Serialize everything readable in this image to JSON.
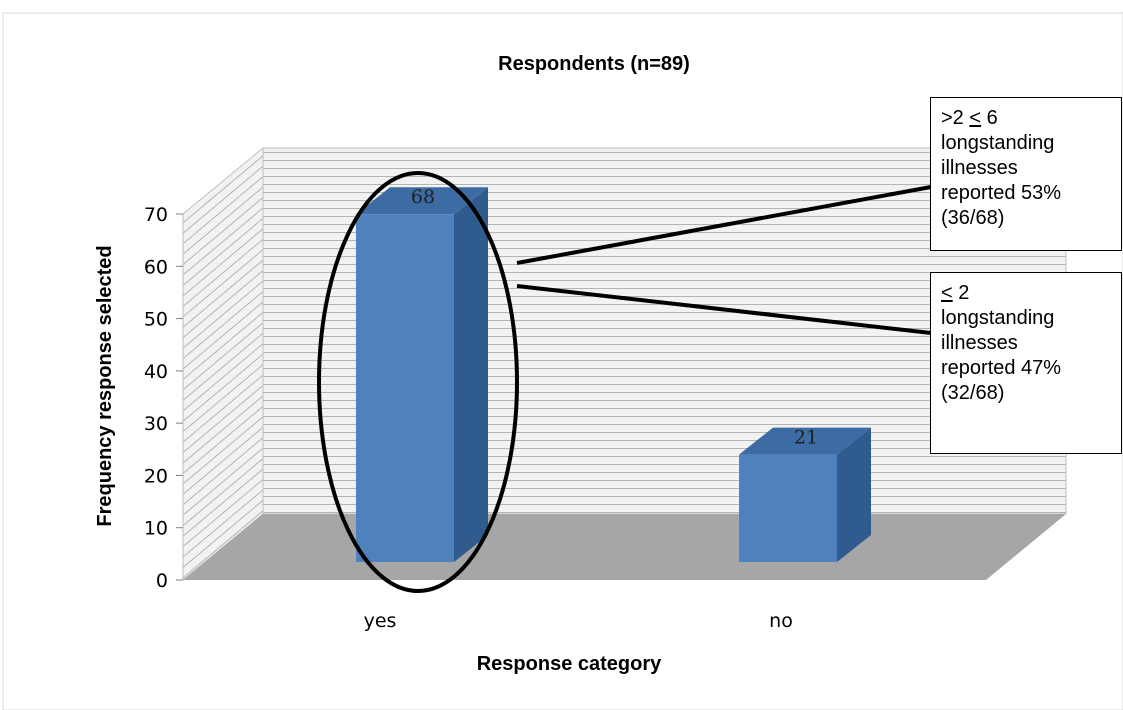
{
  "colors": {
    "bar_front": "#4f81bd",
    "bar_side": "#2f5b8f",
    "bar_top": "#3d6ba3",
    "floor": "#a6a6a6",
    "wall": "#f2f2f2",
    "wall_lines": "#7f7f7f"
  },
  "chart_data": {
    "type": "bar",
    "title": "Respondents (n=89)",
    "xlabel": "Response category",
    "ylabel": "Frequency response selected",
    "categories": [
      "yes",
      "no"
    ],
    "values": [
      68,
      21
    ],
    "value_labels": [
      "68",
      "21"
    ],
    "ylim": [
      0,
      70
    ],
    "yticks": [
      "0",
      "10",
      "20",
      "30",
      "40",
      "50",
      "60",
      "70"
    ],
    "style": "3d-column",
    "grid": true,
    "highlight": "yes",
    "annotations": [
      {
        "segments": [
          {
            "text": ">2 "
          },
          {
            "text": "<",
            "underline": true
          },
          {
            "text": " 6"
          }
        ],
        "lines": [
          "longstanding",
          "illnesses",
          "reported 53%",
          "(36/68)"
        ]
      },
      {
        "segments": [
          {
            "text": "<",
            "underline": true
          },
          {
            "text": " 2"
          }
        ],
        "lines": [
          "longstanding",
          "illnesses",
          "reported 47%",
          "(32/68)"
        ]
      }
    ]
  }
}
